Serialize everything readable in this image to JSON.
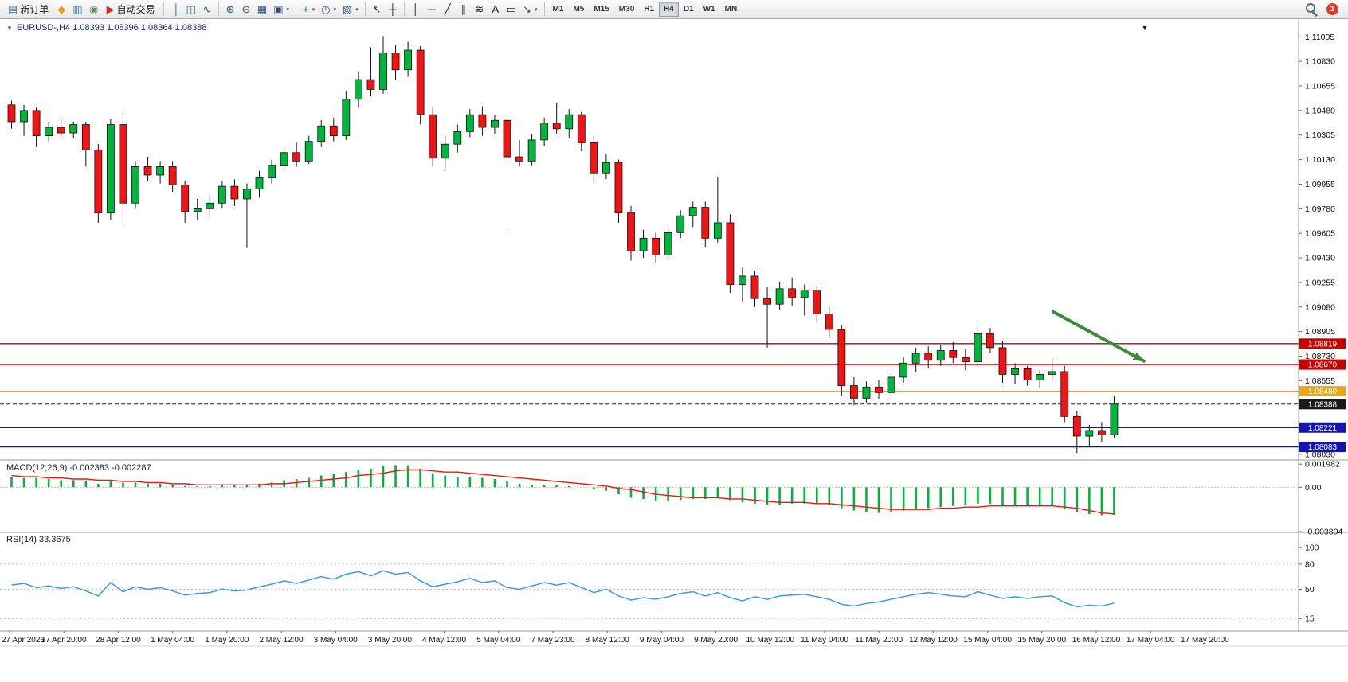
{
  "toolbar": {
    "dropdown_glyph": "▾",
    "notification_count": "1",
    "active_timeframe": "H4",
    "timeframes": [
      "M1",
      "M5",
      "M15",
      "M30",
      "H1",
      "H4",
      "D1",
      "W1",
      "MN"
    ],
    "items": [
      {
        "t": "btn",
        "name": "new-order-button",
        "glyph": "▤",
        "color": "#3a6ea5",
        "label": "新订单"
      },
      {
        "t": "icon",
        "name": "metaeditor-icon",
        "glyph": "◆",
        "color": "#d8a21a"
      },
      {
        "t": "icon",
        "name": "market-watch-icon",
        "glyph": "▥",
        "color": "#3a6ea5"
      },
      {
        "t": "icon",
        "name": "signals-icon",
        "glyph": "◉",
        "color": "#6f8f5f"
      },
      {
        "t": "btn",
        "name": "autotrading-button",
        "glyph": "▶",
        "color": "#cc2b2b",
        "label": "自动交易"
      },
      {
        "t": "sep"
      },
      {
        "t": "icon",
        "name": "bar-chart-icon",
        "glyph": "║",
        "color": "#2e6e6e"
      },
      {
        "t": "icon",
        "name": "candlestick-chart-icon",
        "glyph": "◫",
        "color": "#2e6e6e"
      },
      {
        "t": "icon",
        "name": "line-chart-icon",
        "glyph": "∿",
        "color": "#2e6e6e"
      },
      {
        "t": "sep"
      },
      {
        "t": "icon",
        "name": "zoom-in-icon",
        "glyph": "⊕",
        "color": "#33516e"
      },
      {
        "t": "icon",
        "name": "zoom-out-icon",
        "glyph": "⊖",
        "color": "#33516e"
      },
      {
        "t": "icon",
        "name": "tile-windows-icon",
        "glyph": "▦",
        "color": "#33516e"
      },
      {
        "t": "icon",
        "name": "arrange-windows-icon",
        "glyph": "▣",
        "color": "#33516e",
        "dd": true
      },
      {
        "t": "sep"
      },
      {
        "t": "icon",
        "name": "indicators-icon",
        "glyph": "+",
        "color": "#189518",
        "dd": true
      },
      {
        "t": "icon",
        "name": "periods-icon",
        "glyph": "◷",
        "color": "#33516e",
        "dd": true
      },
      {
        "t": "icon",
        "name": "templates-icon",
        "glyph": "▧",
        "color": "#33516e",
        "dd": true
      },
      {
        "t": "sep"
      },
      {
        "t": "icon",
        "name": "cursor-icon",
        "glyph": "↖",
        "color": "#222222"
      },
      {
        "t": "icon",
        "name": "crosshair-icon",
        "glyph": "┼",
        "color": "#222222"
      },
      {
        "t": "sep"
      },
      {
        "t": "icon",
        "name": "vertical-line-icon",
        "glyph": "│",
        "color": "#222222"
      },
      {
        "t": "icon",
        "name": "horizontal-line-icon",
        "glyph": "─",
        "color": "#222222"
      },
      {
        "t": "icon",
        "name": "trendline-icon",
        "glyph": "╱",
        "color": "#222222"
      },
      {
        "t": "icon",
        "name": "equidistant-channel-icon",
        "glyph": "∥",
        "color": "#222222"
      },
      {
        "t": "icon",
        "name": "fibonacci-icon",
        "glyph": "≋",
        "color": "#222222"
      },
      {
        "t": "icon",
        "name": "text-icon",
        "glyph": "A",
        "color": "#222222"
      },
      {
        "t": "icon",
        "name": "text-label-icon",
        "glyph": "▭",
        "color": "#222222"
      },
      {
        "t": "icon",
        "name": "shapes-icon",
        "glyph": "↘",
        "color": "#8a2b2b",
        "dd": true
      },
      {
        "t": "sep"
      },
      {
        "t": "tfs"
      }
    ]
  },
  "chart": {
    "oneclick_glyph": "▼",
    "top_marker_glyph": "▼",
    "title_color": "#14228c"
  },
  "chart_data": [
    {
      "type": "candlestick",
      "symbol": "EURUSD-",
      "period": "H4",
      "title": "EURUSD-,H4 1.08393 1.08396 1.08364 1.08388",
      "ohlc": {
        "open": "1.08393",
        "high": "1.08396",
        "low": "1.08364",
        "close": "1.08388"
      },
      "up_color": "#00b43c",
      "down_color": "#f01414",
      "ylim": [
        1.0799,
        1.1112
      ],
      "y_ticks": [
        "1.11005",
        "1.10830",
        "1.10655",
        "1.10480",
        "1.10305",
        "1.10130",
        "1.09955",
        "1.09780",
        "1.09605",
        "1.09430",
        "1.09255",
        "1.09080",
        "1.08905",
        "1.08730",
        "1.08555",
        "1.08030"
      ],
      "x_labels": [
        "27 Apr 2023",
        "27 Apr 20:00",
        "28 Apr 12:00",
        "1 May 04:00",
        "1 May 20:00",
        "2 May 12:00",
        "3 May 04:00",
        "3 May 20:00",
        "4 May 12:00",
        "5 May 04:00",
        "7 May 23:00",
        "8 May 12:00",
        "9 May 04:00",
        "9 May 20:00",
        "10 May 12:00",
        "11 May 04:00",
        "11 May 20:00",
        "12 May 12:00",
        "15 May 04:00",
        "15 May 20:00",
        "16 May 12:00",
        "17 May 04:00",
        "17 May 20:00"
      ],
      "levels": [
        {
          "price": 1.08819,
          "label": "1.08819",
          "color": "#c80000"
        },
        {
          "price": 1.0867,
          "label": "1.08670",
          "color": "#c80000"
        },
        {
          "price": 1.0848,
          "label": "1.08480",
          "color": "#e6a817"
        },
        {
          "price": 1.08221,
          "label": "1.08221",
          "color": "#1414b4"
        },
        {
          "price": 1.08083,
          "label": "1.08083",
          "color": "#1414b4"
        }
      ],
      "bid": {
        "price": 1.08388,
        "label": "1.08388",
        "color": "#1a1a1a"
      },
      "arrow": {
        "bar1": 84,
        "price1": 1.0905,
        "bar2": 91.5,
        "price2": 1.0869,
        "color": "#3c8c3c"
      },
      "candles": [
        [
          1.1052,
          1.1055,
          1.1035,
          1.104
        ],
        [
          1.104,
          1.1052,
          1.103,
          1.1048
        ],
        [
          1.1048,
          1.105,
          1.1022,
          1.103
        ],
        [
          1.103,
          1.104,
          1.1026,
          1.1036
        ],
        [
          1.1036,
          1.1042,
          1.1028,
          1.1032
        ],
        [
          1.1032,
          1.104,
          1.1028,
          1.1038
        ],
        [
          1.1038,
          1.104,
          1.1008,
          1.102
        ],
        [
          1.102,
          1.1024,
          1.0968,
          1.0975
        ],
        [
          1.0975,
          1.1042,
          1.097,
          1.1038
        ],
        [
          1.1038,
          1.1048,
          1.0965,
          1.0982
        ],
        [
          1.0982,
          1.1012,
          1.0978,
          1.1008
        ],
        [
          1.1008,
          1.1015,
          1.0998,
          1.1002
        ],
        [
          1.1002,
          1.1012,
          1.0996,
          1.1008
        ],
        [
          1.1008,
          1.1012,
          1.099,
          1.0995
        ],
        [
          1.0995,
          1.0998,
          1.0968,
          1.0976
        ],
        [
          1.0976,
          1.0985,
          1.097,
          1.0978
        ],
        [
          1.0978,
          1.0988,
          1.0972,
          1.0982
        ],
        [
          1.0982,
          1.0998,
          1.0978,
          1.0994
        ],
        [
          1.0994,
          1.0999,
          1.098,
          1.0985
        ],
        [
          1.0985,
          1.0996,
          1.095,
          1.0992
        ],
        [
          1.0992,
          1.1005,
          1.0986,
          1.1
        ],
        [
          1.1,
          1.1013,
          1.0996,
          1.1009
        ],
        [
          1.1009,
          1.1022,
          1.1005,
          1.1018
        ],
        [
          1.1018,
          1.1025,
          1.1008,
          1.1012
        ],
        [
          1.1012,
          1.103,
          1.101,
          1.1026
        ],
        [
          1.1026,
          1.1041,
          1.1022,
          1.1037
        ],
        [
          1.1037,
          1.1043,
          1.1026,
          1.103
        ],
        [
          1.103,
          1.1062,
          1.1027,
          1.1056
        ],
        [
          1.1056,
          1.1076,
          1.105,
          1.107
        ],
        [
          1.107,
          1.1093,
          1.1058,
          1.1063
        ],
        [
          1.1063,
          1.1101,
          1.106,
          1.1089
        ],
        [
          1.1089,
          1.1095,
          1.107,
          1.1077
        ],
        [
          1.1077,
          1.1097,
          1.1072,
          1.1091
        ],
        [
          1.1091,
          1.1094,
          1.1038,
          1.1045
        ],
        [
          1.1045,
          1.105,
          1.1008,
          1.1014
        ],
        [
          1.1014,
          1.103,
          1.1006,
          1.1024
        ],
        [
          1.1024,
          1.1038,
          1.1018,
          1.1033
        ],
        [
          1.1033,
          1.1049,
          1.1029,
          1.1045
        ],
        [
          1.1045,
          1.1051,
          1.103,
          1.1036
        ],
        [
          1.1036,
          1.1045,
          1.1031,
          1.1041
        ],
        [
          1.1041,
          1.1043,
          1.0962,
          1.1015
        ],
        [
          1.1015,
          1.1027,
          1.1008,
          1.1012
        ],
        [
          1.1012,
          1.1031,
          1.1009,
          1.1027
        ],
        [
          1.1027,
          1.1043,
          1.1023,
          1.1039
        ],
        [
          1.1039,
          1.1053,
          1.1031,
          1.1035
        ],
        [
          1.1035,
          1.1049,
          1.1028,
          1.1045
        ],
        [
          1.1045,
          1.1047,
          1.1019,
          1.1025
        ],
        [
          1.1025,
          1.1031,
          1.0997,
          1.1003
        ],
        [
          1.1003,
          1.1017,
          1.0999,
          1.1011
        ],
        [
          1.1011,
          1.1013,
          1.0968,
          1.0975
        ],
        [
          1.0975,
          1.098,
          1.0941,
          1.0948
        ],
        [
          1.0948,
          1.0963,
          1.0943,
          1.0957
        ],
        [
          1.0957,
          1.0961,
          1.0939,
          1.0945
        ],
        [
          1.0945,
          1.0965,
          1.0942,
          1.0961
        ],
        [
          1.0961,
          1.0977,
          1.0957,
          1.0973
        ],
        [
          1.0973,
          1.0983,
          1.0965,
          1.0979
        ],
        [
          1.0979,
          1.0983,
          1.0951,
          1.0957
        ],
        [
          1.0957,
          1.1001,
          1.0954,
          1.0968
        ],
        [
          1.0968,
          1.0974,
          1.0918,
          1.0924
        ],
        [
          1.0924,
          1.0936,
          1.0912,
          1.093
        ],
        [
          1.093,
          1.0934,
          1.0908,
          1.0914
        ],
        [
          1.0914,
          1.0922,
          1.0879,
          1.091
        ],
        [
          1.091,
          1.0926,
          1.0906,
          1.0921
        ],
        [
          1.0921,
          1.0929,
          1.0909,
          1.0915
        ],
        [
          1.0915,
          1.0924,
          1.0902,
          1.092
        ],
        [
          1.092,
          1.0922,
          1.0898,
          1.0903
        ],
        [
          1.0903,
          1.0908,
          1.0886,
          1.0892
        ],
        [
          1.0892,
          1.0895,
          1.0845,
          1.0852
        ],
        [
          1.0852,
          1.0858,
          1.0838,
          1.0843
        ],
        [
          1.0843,
          1.0855,
          1.084,
          1.0851
        ],
        [
          1.0851,
          1.0856,
          1.0842,
          1.0847
        ],
        [
          1.0847,
          1.0862,
          1.0844,
          1.0858
        ],
        [
          1.0858,
          1.0872,
          1.0854,
          1.0868
        ],
        [
          1.0868,
          1.0879,
          1.0862,
          1.0875
        ],
        [
          1.0875,
          1.088,
          1.0864,
          1.087
        ],
        [
          1.087,
          1.0881,
          1.0866,
          1.0877
        ],
        [
          1.0877,
          1.0883,
          1.0868,
          1.0872
        ],
        [
          1.0872,
          1.0878,
          1.0863,
          1.0869
        ],
        [
          1.0869,
          1.0896,
          1.0866,
          1.0889
        ],
        [
          1.0889,
          1.0893,
          1.0875,
          1.0879
        ],
        [
          1.0879,
          1.0884,
          1.0854,
          1.086
        ],
        [
          1.086,
          1.0868,
          1.0853,
          1.0864
        ],
        [
          1.0864,
          1.0866,
          1.0852,
          1.0856
        ],
        [
          1.0856,
          1.0863,
          1.085,
          1.086
        ],
        [
          1.086,
          1.0871,
          1.0856,
          1.0862
        ],
        [
          1.0862,
          1.0866,
          1.0826,
          1.083
        ],
        [
          1.083,
          1.0834,
          1.0804,
          1.0816
        ],
        [
          1.0816,
          1.0824,
          1.0808,
          1.082
        ],
        [
          1.082,
          1.0826,
          1.0812,
          1.0817
        ],
        [
          1.0817,
          1.0845,
          1.0815,
          1.08388
        ]
      ]
    },
    {
      "type": "bar",
      "name": "MACD",
      "label": "MACD(12,26,9) -0.002383 -0.002287",
      "params": [
        12,
        26,
        9
      ],
      "value_macd": "-0.002383",
      "value_signal": "-0.002287",
      "hist_color": "#00b43c",
      "signal_color": "#f01414",
      "ylim": [
        -0.0038,
        0.0022
      ],
      "y_ticks": [
        "0.001982",
        "0.00",
        "-0.003804"
      ],
      "histogram": [
        0.0009,
        0.0008,
        0.0008,
        0.0007,
        0.0006,
        0.0006,
        0.0005,
        0.0003,
        0.0005,
        0.0004,
        0.0004,
        0.0003,
        0.0003,
        0.0002,
        0.0001,
        0.0001,
        0.0001,
        0.0002,
        0.0002,
        0.0002,
        0.0003,
        0.0004,
        0.0006,
        0.0007,
        0.0008,
        0.001,
        0.0011,
        0.0013,
        0.0015,
        0.0016,
        0.0018,
        0.0019,
        0.0019,
        0.0016,
        0.0012,
        0.001,
        0.0009,
        0.0009,
        0.0008,
        0.0007,
        0.0005,
        0.0003,
        0.0002,
        0.0002,
        0.0002,
        0.0001,
        0.0,
        -0.0002,
        -0.0003,
        -0.0006,
        -0.0009,
        -0.001,
        -0.0012,
        -0.0012,
        -0.0011,
        -0.001,
        -0.001,
        -0.0009,
        -0.0011,
        -0.0013,
        -0.0014,
        -0.0015,
        -0.0015,
        -0.0014,
        -0.0014,
        -0.0014,
        -0.0015,
        -0.0018,
        -0.002,
        -0.0021,
        -0.0022,
        -0.0021,
        -0.002,
        -0.0019,
        -0.0018,
        -0.0017,
        -0.0016,
        -0.0015,
        -0.0014,
        -0.0014,
        -0.0015,
        -0.0015,
        -0.0016,
        -0.0016,
        -0.0016,
        -0.0019,
        -0.0021,
        -0.0023,
        -0.0024,
        -0.002383
      ],
      "signal": [
        0.001,
        0.0009,
        0.0009,
        0.0008,
        0.0008,
        0.0007,
        0.0007,
        0.0006,
        0.0006,
        0.0005,
        0.0005,
        0.0004,
        0.0004,
        0.0003,
        0.0003,
        0.0002,
        0.0002,
        0.0002,
        0.0002,
        0.0002,
        0.0002,
        0.0003,
        0.0003,
        0.0004,
        0.0005,
        0.0006,
        0.0007,
        0.0008,
        0.001,
        0.0011,
        0.0012,
        0.0014,
        0.0015,
        0.0015,
        0.0014,
        0.0013,
        0.0013,
        0.0012,
        0.0011,
        0.001,
        0.0009,
        0.0008,
        0.0007,
        0.0006,
        0.0005,
        0.0004,
        0.0003,
        0.0002,
        0.0001,
        -0.0001,
        -0.0002,
        -0.0004,
        -0.0006,
        -0.0007,
        -0.0008,
        -0.0009,
        -0.0009,
        -0.0009,
        -0.001,
        -0.001,
        -0.0011,
        -0.0012,
        -0.0013,
        -0.0013,
        -0.0013,
        -0.0014,
        -0.0014,
        -0.0015,
        -0.0016,
        -0.0017,
        -0.0018,
        -0.0019,
        -0.0019,
        -0.0019,
        -0.0019,
        -0.0018,
        -0.0018,
        -0.0017,
        -0.0017,
        -0.0016,
        -0.0016,
        -0.0016,
        -0.0016,
        -0.0016,
        -0.0016,
        -0.0017,
        -0.0018,
        -0.002,
        -0.0022,
        -0.002287
      ]
    },
    {
      "type": "line",
      "name": "RSI",
      "label": "RSI(14) 33.3675",
      "period": 14,
      "value": "33.3675",
      "line_color": "#3e9bdf",
      "ylim": [
        0,
        117
      ],
      "levels": [
        80,
        50,
        15
      ],
      "y_ticks": [
        "100",
        "80",
        "50",
        "15"
      ],
      "values": [
        55,
        57,
        52,
        54,
        51,
        53,
        48,
        42,
        58,
        47,
        53,
        50,
        52,
        48,
        43,
        45,
        46,
        50,
        48,
        49,
        53,
        56,
        60,
        57,
        61,
        65,
        62,
        68,
        71,
        66,
        72,
        68,
        70,
        60,
        53,
        56,
        59,
        63,
        58,
        60,
        52,
        50,
        54,
        58,
        55,
        58,
        52,
        46,
        50,
        42,
        37,
        40,
        38,
        41,
        45,
        47,
        42,
        46,
        40,
        36,
        41,
        38,
        42,
        43,
        44,
        41,
        38,
        32,
        30,
        33,
        35,
        38,
        41,
        44,
        46,
        44,
        42,
        41,
        47,
        43,
        39,
        41,
        39,
        41,
        42,
        34,
        29,
        31,
        30,
        33.37
      ]
    }
  ]
}
